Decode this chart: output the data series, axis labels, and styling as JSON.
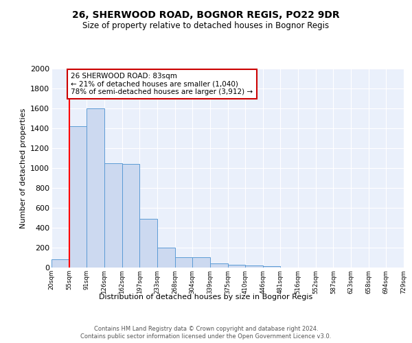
{
  "title": "26, SHERWOOD ROAD, BOGNOR REGIS, PO22 9DR",
  "subtitle": "Size of property relative to detached houses in Bognor Regis",
  "xlabel": "Distribution of detached houses by size in Bognor Regis",
  "ylabel": "Number of detached properties",
  "bar_values": [
    80,
    1420,
    1600,
    1050,
    1040,
    490,
    200,
    105,
    105,
    40,
    30,
    20,
    15,
    0,
    0,
    0,
    0,
    0,
    0,
    0
  ],
  "bin_labels": [
    "20sqm",
    "55sqm",
    "91sqm",
    "126sqm",
    "162sqm",
    "197sqm",
    "233sqm",
    "268sqm",
    "304sqm",
    "339sqm",
    "375sqm",
    "410sqm",
    "446sqm",
    "481sqm",
    "516sqm",
    "552sqm",
    "587sqm",
    "623sqm",
    "658sqm",
    "694sqm",
    "729sqm"
  ],
  "bar_color": "#ccd9f0",
  "bar_edge_color": "#5b9bd5",
  "red_line_x": 1.0,
  "annotation_text": "26 SHERWOOD ROAD: 83sqm\n← 21% of detached houses are smaller (1,040)\n78% of semi-detached houses are larger (3,912) →",
  "annotation_box_color": "#ffffff",
  "annotation_box_edge_color": "#cc0000",
  "footer_text": "Contains HM Land Registry data © Crown copyright and database right 2024.\nContains public sector information licensed under the Open Government Licence v3.0.",
  "ylim": [
    0,
    2000
  ],
  "yticks": [
    0,
    200,
    400,
    600,
    800,
    1000,
    1200,
    1400,
    1600,
    1800,
    2000
  ],
  "background_color": "#eaf0fb"
}
